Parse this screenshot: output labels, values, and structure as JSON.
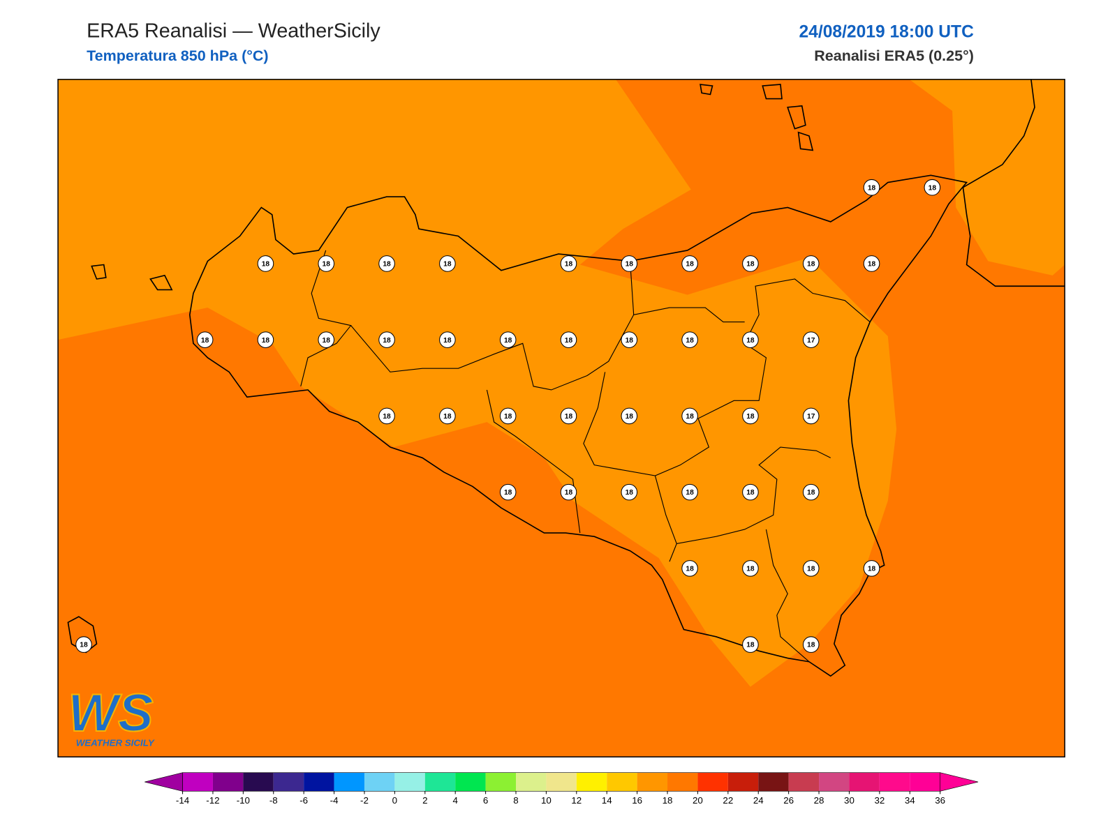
{
  "header": {
    "title": "ERA5 Reanalisi — WeatherSicily",
    "subtitle": "Temperatura 850 hPa (°C)",
    "datetime": "24/08/2019 18:00 UTC",
    "source": "Reanalisi ERA5 (0.25°)"
  },
  "map": {
    "grid": [
      [
        null,
        null,
        null,
        null,
        null,
        null,
        null,
        null,
        null,
        null,
        null,
        null,
        null,
        18,
        18
      ],
      [
        null,
        null,
        null,
        18,
        18,
        18,
        18,
        null,
        18,
        18,
        18,
        18,
        18,
        18,
        null
      ],
      [
        null,
        null,
        18,
        18,
        18,
        18,
        18,
        18,
        18,
        18,
        18,
        18,
        17,
        null,
        null
      ],
      [
        null,
        null,
        null,
        null,
        null,
        18,
        18,
        18,
        18,
        18,
        18,
        18,
        17,
        null,
        null
      ],
      [
        null,
        null,
        null,
        null,
        null,
        null,
        null,
        18,
        18,
        18,
        18,
        18,
        18,
        null,
        null
      ],
      [
        null,
        null,
        null,
        null,
        null,
        null,
        null,
        null,
        null,
        null,
        18,
        18,
        18,
        18,
        null
      ],
      [
        18,
        null,
        null,
        null,
        null,
        null,
        null,
        null,
        null,
        null,
        null,
        18,
        18,
        null,
        null
      ]
    ]
  },
  "logo": {
    "mark": "WS",
    "text": "WEATHER SICILY"
  },
  "colorbar": {
    "ticks": [
      -14,
      -12,
      -10,
      -8,
      -6,
      -4,
      -2,
      0,
      2,
      4,
      6,
      8,
      10,
      12,
      14,
      16,
      18,
      20,
      22,
      24,
      26,
      28,
      30,
      32,
      34,
      36
    ],
    "colors": [
      "#c000c0",
      "#80008c",
      "#280a50",
      "#3c2890",
      "#0014a0",
      "#0096ff",
      "#6ed2f5",
      "#96f0e6",
      "#1ee696",
      "#00e650",
      "#8cf032",
      "#dcf08c",
      "#f0e68c",
      "#fff000",
      "#ffc800",
      "#ff9600",
      "#ff7800",
      "#ff3200",
      "#c81e0a",
      "#781414",
      "#c83c50",
      "#d24682",
      "#e61473",
      "#ff0a8c",
      "#ff0096"
    ],
    "under_color": "#a000a0",
    "over_color": "#ff0096"
  }
}
